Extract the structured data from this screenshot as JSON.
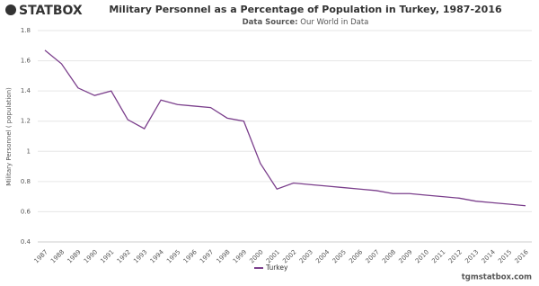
{
  "logo": "STATBOX",
  "footer": "tgmstatbox.com",
  "chart_data": {
    "type": "line",
    "title": "Military Personnel as a Percentage of Population in Turkey, 1987-2016",
    "source_label": "Data Source:",
    "source": "Our World in Data",
    "y_label": "Military Personnel ( population)",
    "categories": [
      "1987",
      "1988",
      "1989",
      "1990",
      "1991",
      "1992",
      "1993",
      "1994",
      "1995",
      "1996",
      "1997",
      "1998",
      "1999",
      "2000",
      "2001",
      "2002",
      "2003",
      "2004",
      "2005",
      "2006",
      "2007",
      "2008",
      "2009",
      "2010",
      "2011",
      "2012",
      "2013",
      "2014",
      "2015",
      "2016"
    ],
    "series": [
      {
        "name": "Turkey",
        "color": "#7b3f8c",
        "values": [
          1.67,
          1.58,
          1.42,
          1.37,
          1.4,
          1.21,
          1.15,
          1.34,
          1.31,
          1.3,
          1.29,
          1.22,
          1.2,
          0.92,
          0.75,
          0.79,
          0.78,
          0.77,
          0.76,
          0.75,
          0.74,
          0.72,
          0.72,
          0.71,
          0.7,
          0.69,
          0.67,
          0.66,
          0.65,
          0.64
        ]
      }
    ],
    "ylim": [
      0.4,
      1.8
    ],
    "yticks": [
      0.4,
      0.6,
      0.8,
      1,
      1.2,
      1.4,
      1.6,
      1.8
    ],
    "grid": true
  }
}
